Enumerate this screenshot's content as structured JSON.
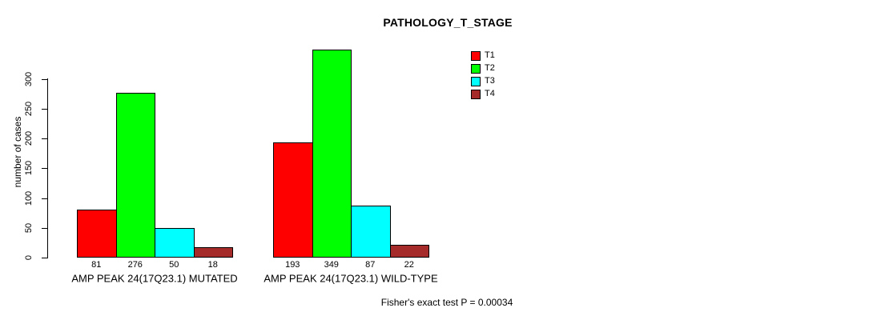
{
  "chart_data": {
    "type": "bar",
    "title": "PATHOLOGY_T_STAGE",
    "ylabel": "number of cases",
    "xlabel": "",
    "categories": [
      "AMP PEAK 24(17Q23.1) MUTATED",
      "AMP PEAK 24(17Q23.1) WILD-TYPE"
    ],
    "series": [
      {
        "name": "T1",
        "color": "#FF0000",
        "values": [
          81,
          193
        ]
      },
      {
        "name": "T2",
        "color": "#00FF00",
        "values": [
          276,
          349
        ]
      },
      {
        "name": "T3",
        "color": "#00FFFF",
        "values": [
          50,
          87
        ]
      },
      {
        "name": "T4",
        "color": "#A52A2A",
        "values": [
          18,
          22
        ]
      }
    ],
    "yticks": [
      0,
      50,
      100,
      150,
      200,
      250,
      300
    ],
    "ylim": [
      0,
      349
    ],
    "grid": false,
    "bar_value_labels": true,
    "legend_position": "top-right",
    "annotation": "Fisher's exact test P = 0.00034"
  }
}
